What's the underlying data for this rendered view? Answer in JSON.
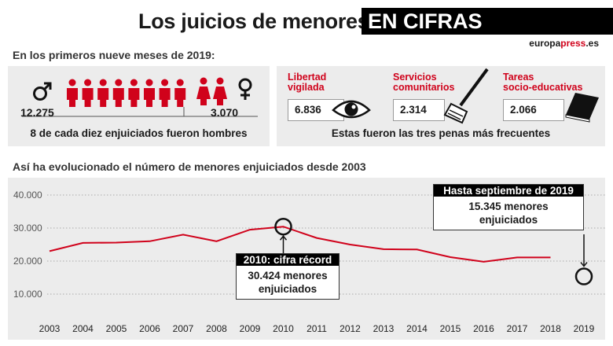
{
  "header": {
    "title": "Los juicios de menores",
    "title_highlight": "EN CIFRAS",
    "brand_prefix": "europa",
    "brand_mid": "press",
    "brand_suffix": ".es"
  },
  "summary_2019": {
    "label": "En los primeros nueve meses de 2019:",
    "male_count": "12.275",
    "female_count": "3.070",
    "caption": "8 de cada diez enjuiciados fueron hombres",
    "male_icon": "male-symbol-icon",
    "female_icon": "female-symbol-icon",
    "male_figures": 8,
    "female_figures": 2
  },
  "penas": {
    "items": [
      {
        "label_lines": [
          "Libertad",
          "vigilada"
        ],
        "value": "6.836",
        "icon": "eye-icon"
      },
      {
        "label_lines": [
          "Servicios",
          "comunitarios"
        ],
        "value": "2.314",
        "icon": "broom-icon"
      },
      {
        "label_lines": [
          "Tareas",
          "socio-educativas"
        ],
        "value": "2.066",
        "icon": "book-icon"
      }
    ],
    "caption": "Estas fueron las tres penas más frecuentes"
  },
  "evolution": {
    "label": "Así ha evolucionado el número de menores enjuiciados desde 2003"
  },
  "chart_data": {
    "type": "line",
    "title": "",
    "xlabel": "",
    "ylabel": "",
    "x": [
      2003,
      2004,
      2005,
      2006,
      2007,
      2008,
      2009,
      2010,
      2011,
      2012,
      2013,
      2014,
      2015,
      2016,
      2017,
      2018
    ],
    "y_ticks": [
      "10.000",
      "20.000",
      "30.000",
      "40.000"
    ],
    "x_tick_labels": [
      "2003",
      "2004",
      "2005",
      "2006",
      "2007",
      "2008",
      "2009",
      "2010",
      "2011",
      "2012",
      "2013",
      "2014",
      "2015",
      "2016",
      "2017",
      "2018",
      "2019"
    ],
    "ylim": [
      0,
      40000
    ],
    "xlim": [
      2003,
      2019
    ],
    "series": [
      {
        "values": [
          23000,
          25500,
          25600,
          26000,
          28000,
          26000,
          29500,
          30424,
          27000,
          25000,
          23600,
          23500,
          21200,
          19800,
          21100,
          21100
        ],
        "color": "#d0021b"
      }
    ],
    "highlight_points": [
      {
        "x": 2010,
        "y": 30424
      },
      {
        "x": 2019,
        "y": 15345
      }
    ],
    "grid": "horizontal-dotted",
    "annotations": [
      {
        "x": 2010,
        "head": "2010: cifra récord",
        "lines": [
          "30.424 menores",
          "enjuiciados"
        ]
      },
      {
        "x": 2019,
        "head": "Hasta septiembre de 2019",
        "lines": [
          "15.345 menores",
          "enjuiciados"
        ]
      }
    ]
  },
  "colors": {
    "accent": "#d0021b",
    "panel_bg": "#ececec",
    "text": "#1a1a1a"
  }
}
